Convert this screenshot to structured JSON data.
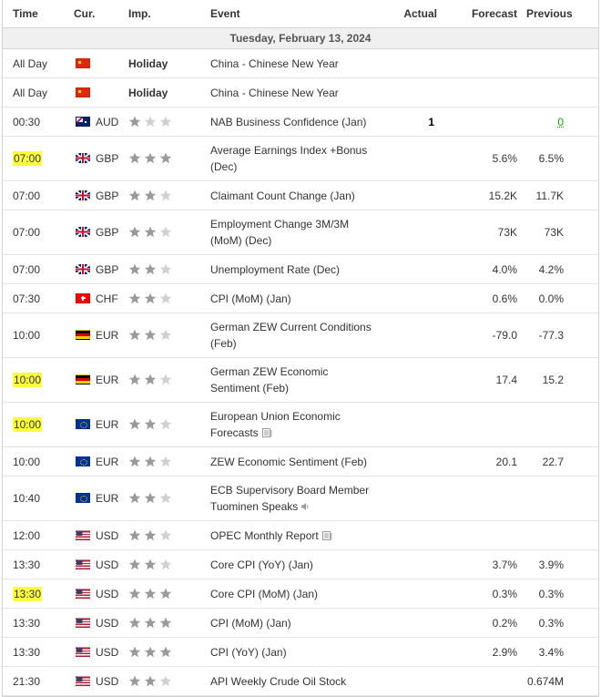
{
  "header": {
    "time": "Time",
    "currency": "Cur.",
    "importance": "Imp.",
    "event": "Event",
    "actual": "Actual",
    "forecast": "Forecast",
    "previous": "Previous"
  },
  "date_label": "Tuesday, February 13, 2024",
  "colors": {
    "highlight": "#fdfd40",
    "star_active": "#9a9a9a",
    "star_inactive": "#d0d0d0",
    "previous_better": "#0ea600",
    "date_row_bg": "#f0f0f0"
  },
  "rows": [
    {
      "time": "All Day",
      "flag": "china-flag",
      "currency": "",
      "holiday": "Holiday",
      "stars": 0,
      "event": "China - Chinese New Year",
      "actual": "",
      "forecast": "",
      "previous": "",
      "highlight": false,
      "lines": 1
    },
    {
      "time": "All Day",
      "flag": "china-flag",
      "currency": "",
      "holiday": "Holiday",
      "stars": 0,
      "event": "China - Chinese New Year",
      "actual": "",
      "forecast": "",
      "previous": "",
      "highlight": false,
      "lines": 1
    },
    {
      "time": "00:30",
      "flag": "australia-flag",
      "currency": "AUD",
      "holiday": "",
      "stars": 1,
      "event": "NAB Business Confidence (Jan)",
      "actual": "1",
      "forecast": "",
      "previous": "0",
      "previous_green": true,
      "highlight": false,
      "lines": 1
    },
    {
      "time": "07:00",
      "flag": "uk-flag",
      "currency": "GBP",
      "holiday": "",
      "stars": 3,
      "event": "Average Earnings Index +Bonus (Dec)",
      "actual": "",
      "forecast": "5.6%",
      "previous": "6.5%",
      "highlight": true,
      "lines": 2
    },
    {
      "time": "07:00",
      "flag": "uk-flag",
      "currency": "GBP",
      "holiday": "",
      "stars": 2,
      "event": "Claimant Count Change (Jan)",
      "actual": "",
      "forecast": "15.2K",
      "previous": "11.7K",
      "highlight": false,
      "lines": 1
    },
    {
      "time": "07:00",
      "flag": "uk-flag",
      "currency": "GBP",
      "holiday": "",
      "stars": 2,
      "event": "Employment Change 3M/3M (MoM) (Dec)",
      "actual": "",
      "forecast": "73K",
      "previous": "73K",
      "highlight": false,
      "lines": 2
    },
    {
      "time": "07:00",
      "flag": "uk-flag",
      "currency": "GBP",
      "holiday": "",
      "stars": 2,
      "event": "Unemployment Rate (Dec)",
      "actual": "",
      "forecast": "4.0%",
      "previous": "4.2%",
      "highlight": false,
      "lines": 1
    },
    {
      "time": "07:30",
      "flag": "swiss-flag",
      "currency": "CHF",
      "holiday": "",
      "stars": 2,
      "event": "CPI (MoM) (Jan)",
      "actual": "",
      "forecast": "0.6%",
      "previous": "0.0%",
      "highlight": false,
      "lines": 1
    },
    {
      "time": "10:00",
      "flag": "germany-flag",
      "currency": "EUR",
      "holiday": "",
      "stars": 2,
      "event": "German ZEW Current Conditions (Feb)",
      "actual": "",
      "forecast": "-79.0",
      "previous": "-77.3",
      "highlight": false,
      "lines": 2
    },
    {
      "time": "10:00",
      "flag": "germany-flag",
      "currency": "EUR",
      "holiday": "",
      "stars": 2,
      "event": "German ZEW Economic Sentiment (Feb)",
      "actual": "",
      "forecast": "17.4",
      "previous": "15.2",
      "highlight": true,
      "lines": 2
    },
    {
      "time": "10:00",
      "flag": "eu-flag",
      "currency": "EUR",
      "holiday": "",
      "stars": 2,
      "event": "European Union Economic Forecasts",
      "icon": "document-icon",
      "actual": "",
      "forecast": "",
      "previous": "",
      "highlight": true,
      "lines": 2
    },
    {
      "time": "10:00",
      "flag": "eu-flag",
      "currency": "EUR",
      "holiday": "",
      "stars": 2,
      "event": "ZEW Economic Sentiment (Feb)",
      "actual": "",
      "forecast": "20.1",
      "previous": "22.7",
      "highlight": false,
      "lines": 1
    },
    {
      "time": "10:40",
      "flag": "eu-flag",
      "currency": "EUR",
      "holiday": "",
      "stars": 2,
      "event": "ECB Supervisory Board Member Tuominen Speaks",
      "icon": "speaker-icon",
      "actual": "",
      "forecast": "",
      "previous": "",
      "highlight": false,
      "lines": 2
    },
    {
      "time": "12:00",
      "flag": "us-flag",
      "currency": "USD",
      "holiday": "",
      "stars": 2,
      "event": "OPEC Monthly Report",
      "icon": "document-icon",
      "actual": "",
      "forecast": "",
      "previous": "",
      "highlight": false,
      "lines": 1
    },
    {
      "time": "13:30",
      "flag": "us-flag",
      "currency": "USD",
      "holiday": "",
      "stars": 2,
      "event": "Core CPI (YoY) (Jan)",
      "actual": "",
      "forecast": "3.7%",
      "previous": "3.9%",
      "highlight": false,
      "lines": 1
    },
    {
      "time": "13:30",
      "flag": "us-flag",
      "currency": "USD",
      "holiday": "",
      "stars": 3,
      "event": "Core CPI (MoM) (Jan)",
      "actual": "",
      "forecast": "0.3%",
      "previous": "0.3%",
      "highlight": true,
      "lines": 1
    },
    {
      "time": "13:30",
      "flag": "us-flag",
      "currency": "USD",
      "holiday": "",
      "stars": 3,
      "event": "CPI (MoM) (Jan)",
      "actual": "",
      "forecast": "0.2%",
      "previous": "0.3%",
      "highlight": false,
      "lines": 1
    },
    {
      "time": "13:30",
      "flag": "us-flag",
      "currency": "USD",
      "holiday": "",
      "stars": 3,
      "event": "CPI (YoY) (Jan)",
      "actual": "",
      "forecast": "2.9%",
      "previous": "3.4%",
      "highlight": false,
      "lines": 1
    },
    {
      "time": "21:30",
      "flag": "us-flag",
      "currency": "USD",
      "holiday": "",
      "stars": 2,
      "event": "API Weekly Crude Oil Stock",
      "actual": "",
      "forecast": "",
      "previous": "0.674M",
      "highlight": false,
      "lines": 1
    }
  ]
}
